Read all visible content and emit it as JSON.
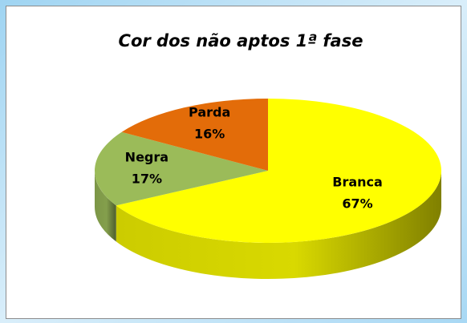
{
  "chart_data": {
    "type": "pie",
    "title": "Cor dos não aptos 1ª fase",
    "categories": [
      "Branca",
      "Negra",
      "Parda"
    ],
    "values": [
      67,
      17,
      16
    ],
    "value_labels": [
      "67%",
      "17%",
      "16%"
    ],
    "colors": [
      "#ffff00",
      "#9bbb59",
      "#e36c09"
    ]
  }
}
